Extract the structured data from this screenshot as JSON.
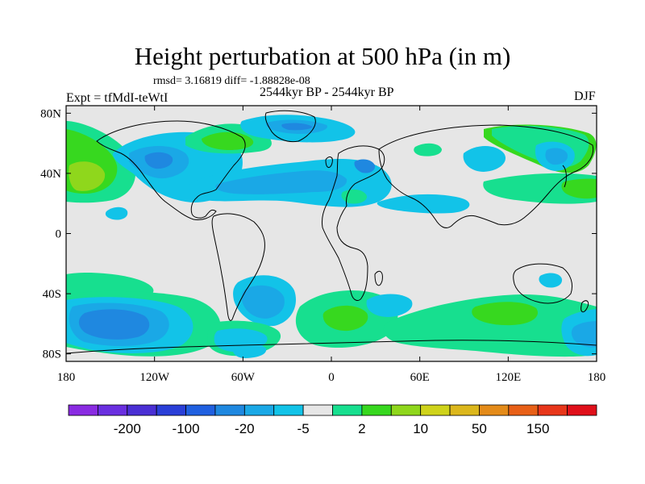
{
  "title": "Height perturbation at 500 hPa (in m)",
  "stats": "rmsd= 3.16819 diff= -1.88828e-08",
  "experiment": "Expt = tfMdI-teWtI",
  "period": "2544kyr BP - 2544kyr BP",
  "season": "DJF",
  "axes": {
    "x_ticks": [
      {
        "label": "180",
        "lon": -180
      },
      {
        "label": "120W",
        "lon": -120
      },
      {
        "label": "60W",
        "lon": -60
      },
      {
        "label": "0",
        "lon": 0
      },
      {
        "label": "60E",
        "lon": 60
      },
      {
        "label": "120E",
        "lon": 120
      },
      {
        "label": "180",
        "lon": 180
      }
    ],
    "y_ticks": [
      {
        "label": "80N",
        "lat": 80
      },
      {
        "label": "40N",
        "lat": 40
      },
      {
        "label": "0",
        "lat": 0
      },
      {
        "label": "40S",
        "lat": -40
      },
      {
        "label": "80S",
        "lat": -80
      }
    ],
    "lon_range": [
      -180,
      180
    ],
    "lat_range": [
      -85,
      85
    ]
  },
  "colorbar": {
    "colors": [
      "#8a2be2",
      "#6a2fe0",
      "#4a2fd4",
      "#2a3fd8",
      "#2060e0",
      "#1f88e0",
      "#1aa8e6",
      "#12c3e8",
      "#e6e6e6",
      "#17df8f",
      "#37d81f",
      "#8fd71c",
      "#cfd31a",
      "#dcb71c",
      "#e48b19",
      "#e86017",
      "#e8361a",
      "#e0101a"
    ],
    "labels": [
      {
        "label": "-200",
        "after_index": 1
      },
      {
        "label": "-100",
        "after_index": 3
      },
      {
        "label": "-20",
        "after_index": 5
      },
      {
        "label": "-5",
        "after_index": 7
      },
      {
        "label": "2",
        "after_index": 9
      },
      {
        "label": "10",
        "after_index": 11
      },
      {
        "label": "50",
        "after_index": 13
      },
      {
        "label": "150",
        "after_index": 15
      }
    ]
  },
  "background_color": "#e6e6e6"
}
